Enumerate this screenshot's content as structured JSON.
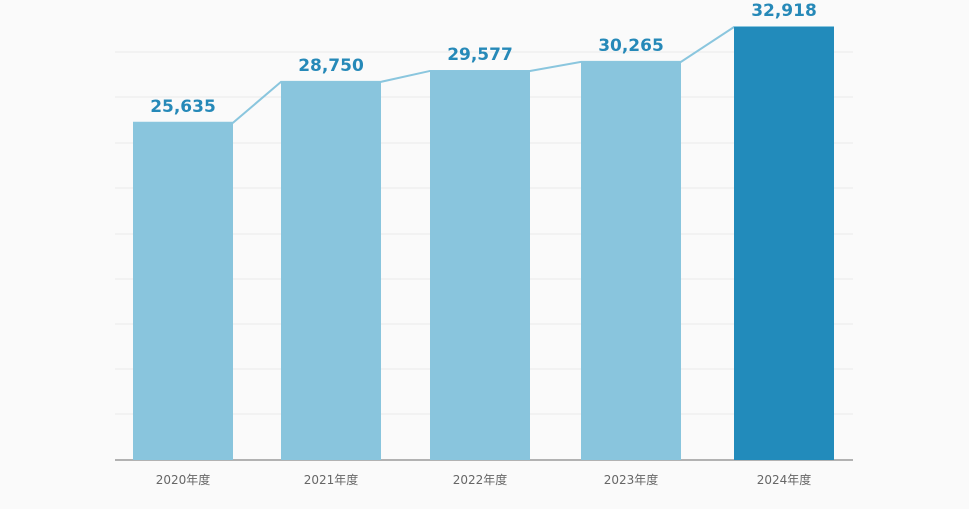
{
  "chart_data": {
    "type": "bar",
    "categories": [
      "2020年度",
      "2021年度",
      "2022年度",
      "2023年度",
      "2024年度"
    ],
    "values": [
      25635,
      28750,
      29577,
      30265,
      32918
    ],
    "value_labels": [
      "25,635",
      "28,750",
      "29,577",
      "30,265",
      "32,918"
    ],
    "title": "",
    "xlabel": "",
    "ylabel": "",
    "ylim": [
      0,
      35000
    ],
    "grid": true,
    "legend": "none",
    "connector_line": true
  },
  "colors": {
    "bar": "#89c5dd",
    "bar_highlight": "#228bbb",
    "label": "#2689b8",
    "connector": "#8ac6de",
    "grid": "#e9e9e9",
    "baseline": "#9a9a9a"
  }
}
